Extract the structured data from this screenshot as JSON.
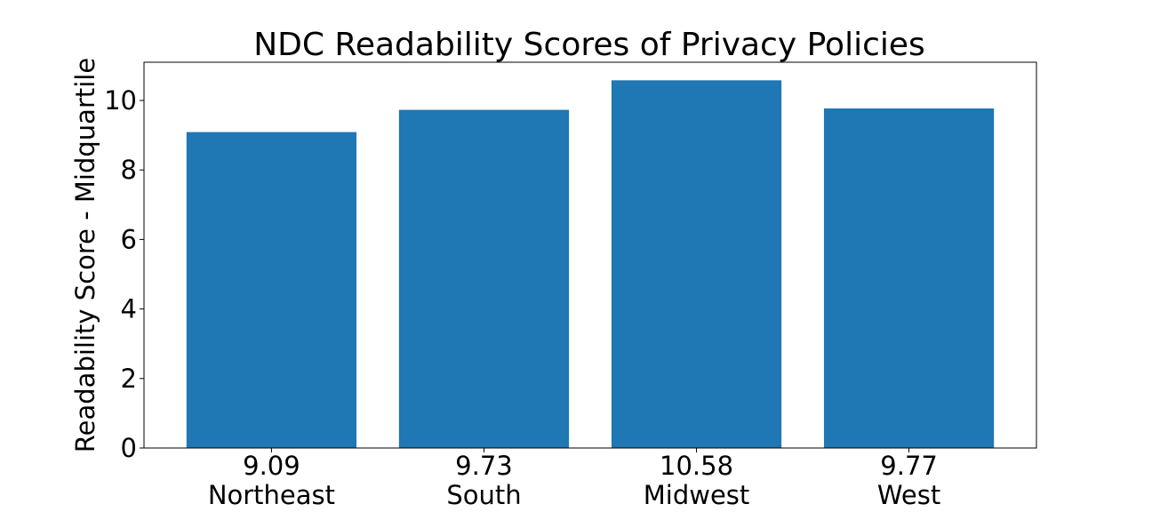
{
  "chart_data": {
    "type": "bar",
    "title": "NDC Readability Scores of Privacy Policies",
    "xlabel": "",
    "ylabel": "Readability Score - Midquartile",
    "categories": [
      "Northeast",
      "South",
      "Midwest",
      "West"
    ],
    "values": [
      9.09,
      9.73,
      10.58,
      9.77
    ],
    "value_labels": [
      "9.09",
      "9.73",
      "10.58",
      "9.77"
    ],
    "ylim": [
      0,
      11.1
    ],
    "yticks": [
      0,
      2,
      4,
      6,
      8,
      10
    ],
    "ytick_labels": [
      "0",
      "2",
      "4",
      "6",
      "8",
      "10"
    ],
    "grid": false,
    "legend": "none",
    "bar_color": "#1f77b4"
  }
}
